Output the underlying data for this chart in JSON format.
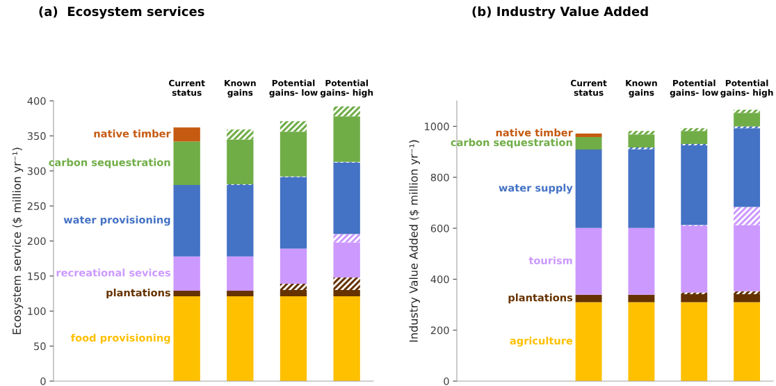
{
  "chart_data": [
    {
      "type": "bar",
      "stacked": true,
      "title": "(a)  Ecosystem services",
      "ylabel": "Ecosystem service ($ million yr⁻¹)",
      "categories": [
        null,
        null,
        "Current\nstatus",
        "Known\ngains",
        "Potential\ngains- low",
        "Potential\ngains- high"
      ],
      "ylim": [
        0,
        400
      ],
      "yticks": [
        0,
        50,
        100,
        150,
        200,
        250,
        300,
        350,
        400
      ],
      "legend": false,
      "grid": false,
      "series": [
        {
          "name": "food provisioning",
          "color": "#ffc000",
          "values": [
            null,
            null,
            121,
            121,
            121,
            121
          ]
        },
        {
          "name": "plantations",
          "color": "#663300",
          "values": [
            null,
            null,
            8,
            8,
            9,
            9
          ]
        },
        {
          "color": "#663300",
          "values": [
            null,
            null,
            null,
            null,
            9,
            18
          ]
        },
        {
          "name": "recreational sevices",
          "color": "#cc99ff",
          "values": [
            null,
            null,
            49,
            49,
            50,
            50
          ]
        },
        {
          "color": "#cc99ff",
          "values": [
            null,
            null,
            null,
            null,
            null,
            12
          ]
        },
        {
          "name": "water provisioning",
          "color": "#4472c4",
          "values": [
            null,
            null,
            102,
            102,
            102,
            102
          ]
        },
        {
          "color": "#4472c4",
          "values": [
            null,
            null,
            null,
            1,
            1,
            1
          ]
        },
        {
          "name": "carbon sequestration",
          "color": "#70ad47",
          "values": [
            null,
            null,
            62,
            64,
            64,
            65
          ]
        },
        {
          "color": "#70ad47",
          "values": [
            null,
            null,
            null,
            14,
            15,
            14
          ]
        },
        {
          "name": "native timber",
          "color": "#c55a11",
          "values": [
            null,
            null,
            20,
            null,
            null,
            null
          ]
        }
      ]
    },
    {
      "type": "bar",
      "stacked": true,
      "title": "(b) Industry Value Added",
      "ylabel": "Industry Value Added ($ million yr⁻¹)",
      "categories": [
        null,
        null,
        "Current\nstatus",
        "Known\ngains",
        "Potential\ngains- low",
        "Potential\ngains- high"
      ],
      "ylim": [
        0,
        1100
      ],
      "yticks": [
        0,
        200,
        400,
        600,
        800,
        1000
      ],
      "legend": false,
      "grid": false,
      "series": [
        {
          "name": "agriculture",
          "color": "#ffc000",
          "values": [
            null,
            null,
            310,
            310,
            310,
            310
          ]
        },
        {
          "name": "plantations",
          "color": "#663300",
          "values": [
            null,
            null,
            29,
            29,
            31,
            31
          ]
        },
        {
          "color": "#663300",
          "values": [
            null,
            null,
            null,
            null,
            7,
            12
          ]
        },
        {
          "name": "tourism",
          "color": "#cc99ff",
          "values": [
            null,
            null,
            262,
            262,
            261,
            259
          ]
        },
        {
          "color": "#cc99ff",
          "values": [
            null,
            null,
            null,
            null,
            4,
            72
          ]
        },
        {
          "name": "water supply",
          "color": "#4472c4",
          "values": [
            null,
            null,
            308,
            309,
            312,
            309
          ]
        },
        {
          "color": "#4472c4",
          "values": [
            null,
            null,
            null,
            7,
            6,
            7
          ]
        },
        {
          "name": "carbon sequestration",
          "color": "#70ad47",
          "values": [
            null,
            null,
            49,
            51,
            51,
            53
          ]
        },
        {
          "color": "#70ad47",
          "values": [
            null,
            null,
            null,
            14,
            11,
            12
          ]
        },
        {
          "name": "native timber",
          "color": "#c55a11",
          "values": [
            null,
            null,
            14,
            null,
            null,
            null
          ]
        }
      ]
    }
  ]
}
